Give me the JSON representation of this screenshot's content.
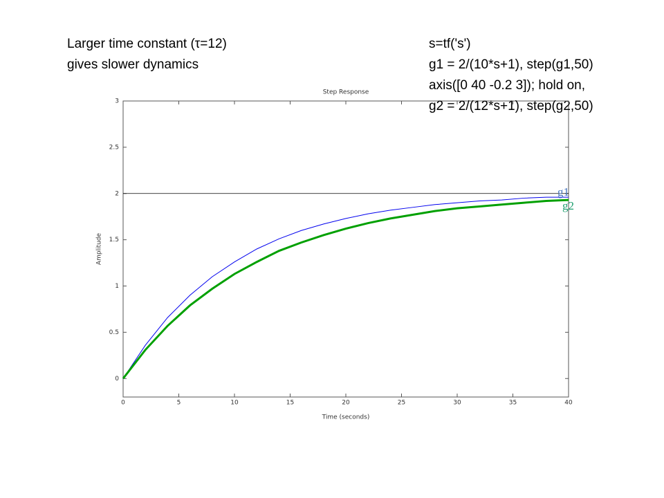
{
  "chart_data": {
    "type": "line",
    "title": "Step Response",
    "xlabel": "Time (seconds)",
    "ylabel": "Amplitude",
    "annotations": [
      "Larger time constant (τ=12)",
      "gives slower dynamics"
    ],
    "code": [
      "s=tf('s')",
      "g1 = 2/(10*s+1), step(g1,50)",
      "axis([0 40 -0.2 3]); hold on,",
      "g2 = 2/(12*s+1), step(g2,50)"
    ],
    "x": [
      0,
      2,
      4,
      6,
      8,
      10,
      12,
      14,
      16,
      18,
      20,
      22,
      24,
      26,
      28,
      30,
      32,
      34,
      36,
      38,
      40
    ],
    "series": [
      {
        "name": "g1",
        "color": "#0000ee",
        "label_color": "#4a78c0",
        "width": 1,
        "values": [
          0,
          0.36,
          0.66,
          0.9,
          1.1,
          1.26,
          1.4,
          1.51,
          1.6,
          1.67,
          1.73,
          1.78,
          1.82,
          1.85,
          1.88,
          1.9,
          1.92,
          1.93,
          1.95,
          1.96,
          1.96
        ]
      },
      {
        "name": "g2",
        "color": "#00a000",
        "label_color": "#20a070",
        "width": 3,
        "values": [
          0,
          0.31,
          0.57,
          0.79,
          0.97,
          1.13,
          1.26,
          1.38,
          1.47,
          1.55,
          1.62,
          1.68,
          1.73,
          1.77,
          1.81,
          1.84,
          1.86,
          1.88,
          1.9,
          1.92,
          1.93
        ]
      }
    ],
    "reference_line": 2,
    "xlim": [
      0,
      40
    ],
    "xticks": [
      0,
      5,
      10,
      15,
      20,
      25,
      30,
      35,
      40
    ],
    "ylim": [
      -0.2,
      3
    ],
    "yticks": [
      0,
      0.5,
      1,
      1.5,
      2,
      2.5,
      3
    ],
    "grid": false
  }
}
